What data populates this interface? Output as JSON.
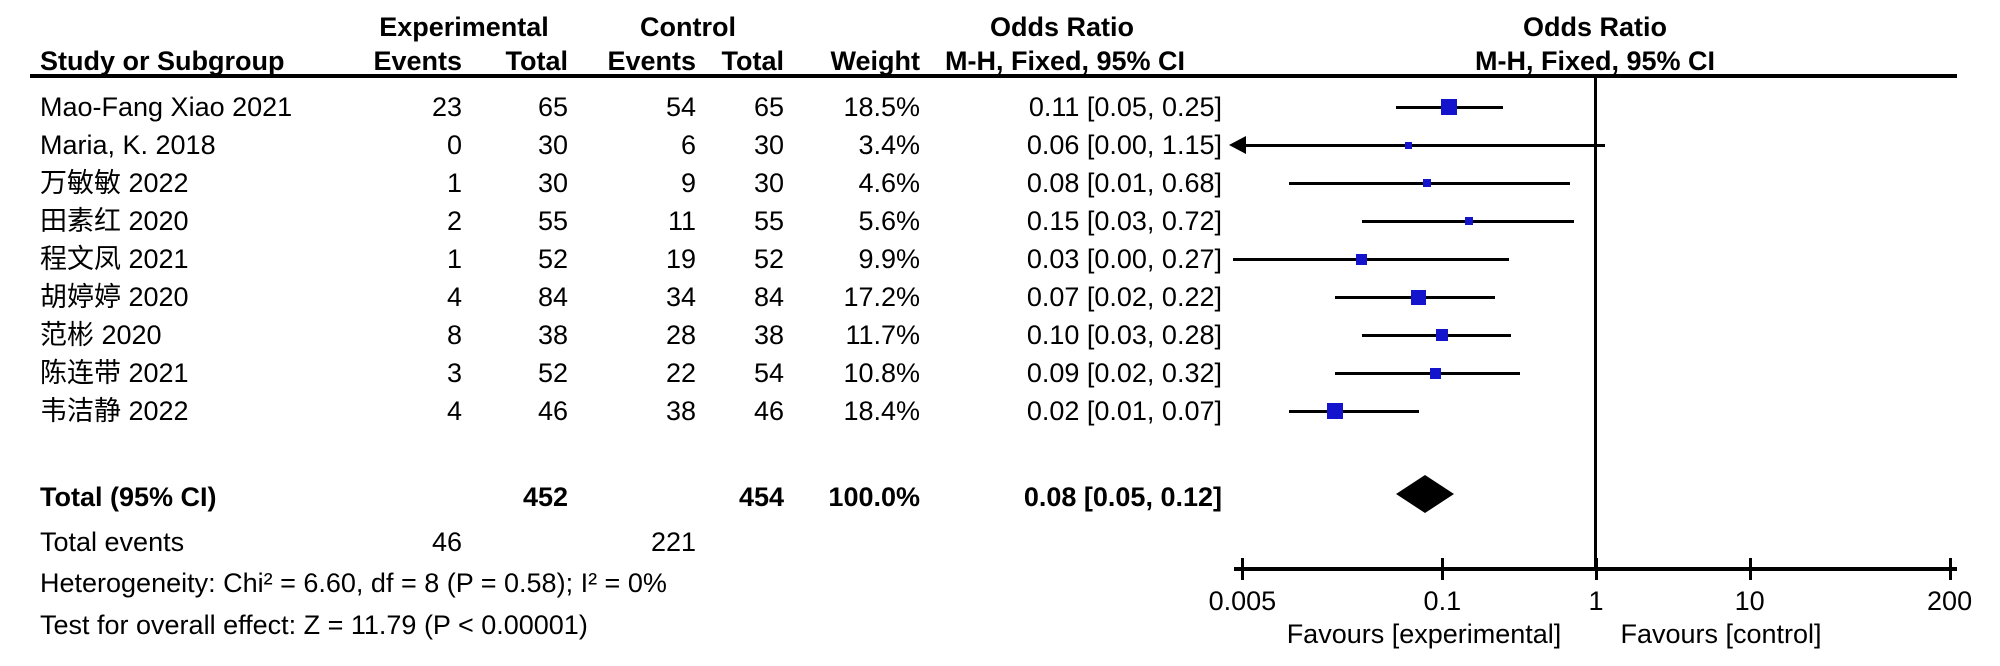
{
  "table": {
    "group_headers": {
      "experimental": "Experimental",
      "control": "Control",
      "odds_ratio": "Odds Ratio"
    },
    "col_headers": {
      "study": "Study or Subgroup",
      "events": "Events",
      "total": "Total",
      "weight": "Weight",
      "mh_ci": "M-H, Fixed, 95% CI"
    },
    "rows": [
      {
        "study": "Mao-Fang Xiao 2021",
        "e_events": "23",
        "e_total": "65",
        "c_events": "54",
        "c_total": "65",
        "weight": "18.5%",
        "ci": "0.11 [0.05, 0.25]",
        "or": 0.11,
        "lo": 0.05,
        "hi": 0.25,
        "w": 18.5
      },
      {
        "study": "Maria, K. 2018",
        "e_events": "0",
        "e_total": "30",
        "c_events": "6",
        "c_total": "30",
        "weight": "3.4%",
        "ci": "0.06 [0.00, 1.15]",
        "or": 0.06,
        "lo": null,
        "hi": 1.15,
        "w": 3.4,
        "arrow_left": true
      },
      {
        "study": "万敏敏 2022",
        "e_events": "1",
        "e_total": "30",
        "c_events": "9",
        "c_total": "30",
        "weight": "4.6%",
        "ci": "0.08 [0.01, 0.68]",
        "or": 0.08,
        "lo": 0.01,
        "hi": 0.68,
        "w": 4.6
      },
      {
        "study": "田素红 2020",
        "e_events": "2",
        "e_total": "55",
        "c_events": "11",
        "c_total": "55",
        "weight": "5.6%",
        "ci": "0.15 [0.03, 0.72]",
        "or": 0.15,
        "lo": 0.03,
        "hi": 0.72,
        "w": 5.6
      },
      {
        "study": "程文凤 2021",
        "e_events": "1",
        "e_total": "52",
        "c_events": "19",
        "c_total": "52",
        "weight": "9.9%",
        "ci": "0.03 [0.00, 0.27]",
        "or": 0.03,
        "lo": null,
        "hi": 0.27,
        "w": 9.9,
        "clip_left": true
      },
      {
        "study": "胡婷婷 2020",
        "e_events": "4",
        "e_total": "84",
        "c_events": "34",
        "c_total": "84",
        "weight": "17.2%",
        "ci": "0.07 [0.02, 0.22]",
        "or": 0.07,
        "lo": 0.02,
        "hi": 0.22,
        "w": 17.2
      },
      {
        "study": "范彬 2020",
        "e_events": "8",
        "e_total": "38",
        "c_events": "28",
        "c_total": "38",
        "weight": "11.7%",
        "ci": "0.10 [0.03, 0.28]",
        "or": 0.1,
        "lo": 0.03,
        "hi": 0.28,
        "w": 11.7
      },
      {
        "study": "陈连带 2021",
        "e_events": "3",
        "e_total": "52",
        "c_events": "22",
        "c_total": "54",
        "weight": "10.8%",
        "ci": "0.09 [0.02, 0.32]",
        "or": 0.09,
        "lo": 0.02,
        "hi": 0.32,
        "w": 10.8
      },
      {
        "study": "韦洁静 2022",
        "e_events": "4",
        "e_total": "46",
        "c_events": "38",
        "c_total": "46",
        "weight": "18.4%",
        "ci": "0.02 [0.01, 0.07]",
        "or": 0.02,
        "lo": 0.01,
        "hi": 0.07,
        "w": 18.4
      }
    ],
    "total_row": {
      "label": "Total (95% CI)",
      "e_total": "452",
      "c_total": "454",
      "weight": "100.0%",
      "ci": "0.08 [0.05, 0.12]"
    },
    "total_events": {
      "label": "Total events",
      "experimental": "46",
      "control": "221"
    },
    "heterogeneity": "Heterogeneity: Chi² = 6.60, df = 8 (P = 0.58); I² = 0%",
    "overall_effect": "Test for overall effect: Z = 11.79 (P < 0.00001)"
  },
  "plot": {
    "ticks": [
      {
        "label": "0.005",
        "v": 0.005
      },
      {
        "label": "0.1",
        "v": 0.1
      },
      {
        "label": "1",
        "v": 1
      },
      {
        "label": "10",
        "v": 10
      },
      {
        "label": "200",
        "v": 200
      }
    ],
    "favours_left": "Favours [experimental]",
    "favours_right": "Favours [control]",
    "marker_color": "#1414CC",
    "diamond_color": "#000000",
    "line_color": "#000000",
    "background": "#FFFFFF"
  },
  "chart_data": {
    "type": "scatter",
    "subtype": "forest_plot",
    "title": "Odds Ratio",
    "effect_measure": "M-H, Fixed, 95% CI",
    "x_scale": "log",
    "xlim": [
      0.005,
      200
    ],
    "x_ticks": [
      0.005,
      0.1,
      1,
      10,
      200
    ],
    "studies": [
      "Mao-Fang Xiao 2021",
      "Maria, K. 2018",
      "万敏敏 2022",
      "田素红 2020",
      "程文凤 2021",
      "胡婷婷 2020",
      "范彬 2020",
      "陈连带 2021",
      "韦洁静 2022"
    ],
    "odds_ratios": [
      0.11,
      0.06,
      0.08,
      0.15,
      0.03,
      0.07,
      0.1,
      0.09,
      0.02
    ],
    "ci_lower": [
      0.05,
      0.0,
      0.01,
      0.03,
      0.0,
      0.02,
      0.03,
      0.02,
      0.01
    ],
    "ci_upper": [
      0.25,
      1.15,
      0.68,
      0.72,
      0.27,
      0.22,
      0.28,
      0.32,
      0.07
    ],
    "weights_pct": [
      18.5,
      3.4,
      4.6,
      5.6,
      9.9,
      17.2,
      11.7,
      10.8,
      18.4
    ],
    "experimental_events": [
      23,
      0,
      1,
      2,
      1,
      4,
      8,
      3,
      4
    ],
    "experimental_totals": [
      65,
      30,
      30,
      55,
      52,
      84,
      38,
      52,
      46
    ],
    "control_events": [
      54,
      6,
      9,
      11,
      19,
      34,
      28,
      22,
      38
    ],
    "control_totals": [
      65,
      30,
      30,
      55,
      52,
      84,
      38,
      54,
      46
    ],
    "total": {
      "label": "Total (95% CI)",
      "odds_ratio": 0.08,
      "ci_lower": 0.05,
      "ci_upper": 0.12,
      "weight_pct": 100.0,
      "experimental_total": 452,
      "control_total": 454,
      "total_events_experimental": 46,
      "total_events_control": 221
    },
    "heterogeneity": {
      "chi2": 6.6,
      "df": 8,
      "p": 0.58,
      "i2_pct": 0
    },
    "overall_effect": {
      "z": 11.79,
      "p": "< 0.00001"
    },
    "axis_label_left": "Favours [experimental]",
    "axis_label_right": "Favours [control]",
    "grid": false,
    "legend": false
  }
}
